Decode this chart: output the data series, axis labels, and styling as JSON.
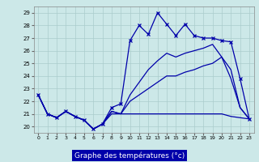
{
  "xlabel": "Graphe des températures (°c)",
  "bg_color": "#cce8e8",
  "grid_color": "#aacccc",
  "line_color": "#0000aa",
  "xlabel_bg": "#0000aa",
  "xlabel_fg": "#ffffff",
  "xlim": [
    -0.5,
    23.5
  ],
  "ylim": [
    19.5,
    29.5
  ],
  "yticks": [
    20,
    21,
    22,
    23,
    24,
    25,
    26,
    27,
    28,
    29
  ],
  "xticks": [
    0,
    1,
    2,
    3,
    4,
    5,
    6,
    7,
    8,
    9,
    10,
    11,
    12,
    13,
    14,
    15,
    16,
    17,
    18,
    19,
    20,
    21,
    22,
    23
  ],
  "line1_x": [
    0,
    1,
    2,
    3,
    4,
    5,
    6,
    7,
    8,
    9,
    10,
    11,
    12,
    13,
    14,
    15,
    16,
    17,
    18,
    19,
    20,
    21,
    22,
    23
  ],
  "line1_y": [
    22.5,
    21.0,
    20.7,
    21.2,
    20.8,
    20.5,
    19.8,
    20.2,
    21.5,
    21.8,
    26.8,
    28.0,
    27.3,
    29.0,
    28.1,
    27.2,
    28.1,
    27.2,
    27.0,
    27.0,
    26.8,
    26.7,
    23.8,
    20.6
  ],
  "line2_x": [
    0,
    1,
    2,
    3,
    4,
    5,
    6,
    7,
    8,
    9,
    10,
    11,
    12,
    13,
    14,
    15,
    16,
    17,
    18,
    19,
    20,
    21,
    22,
    23
  ],
  "line2_y": [
    22.5,
    21.0,
    20.7,
    21.2,
    20.8,
    20.5,
    19.8,
    20.2,
    21.2,
    21.0,
    22.5,
    23.5,
    24.5,
    25.2,
    25.8,
    25.5,
    25.8,
    26.0,
    26.2,
    26.5,
    25.5,
    23.8,
    21.5,
    20.6
  ],
  "line3_x": [
    0,
    1,
    2,
    3,
    4,
    5,
    6,
    7,
    8,
    9,
    10,
    11,
    12,
    13,
    14,
    15,
    16,
    17,
    18,
    19,
    20,
    21,
    22,
    23
  ],
  "line3_y": [
    22.5,
    21.0,
    20.7,
    21.2,
    20.8,
    20.5,
    19.8,
    20.2,
    21.2,
    21.0,
    22.0,
    22.5,
    23.0,
    23.5,
    24.0,
    24.0,
    24.3,
    24.5,
    24.8,
    25.0,
    25.5,
    24.5,
    21.5,
    20.6
  ],
  "line4_x": [
    0,
    1,
    2,
    3,
    4,
    5,
    6,
    7,
    8,
    9,
    10,
    11,
    12,
    13,
    14,
    15,
    16,
    17,
    18,
    19,
    20,
    21,
    22,
    23
  ],
  "line4_y": [
    22.5,
    21.0,
    20.7,
    21.2,
    20.8,
    20.5,
    19.8,
    20.2,
    21.0,
    21.0,
    21.0,
    21.0,
    21.0,
    21.0,
    21.0,
    21.0,
    21.0,
    21.0,
    21.0,
    21.0,
    21.0,
    20.8,
    20.7,
    20.6
  ]
}
